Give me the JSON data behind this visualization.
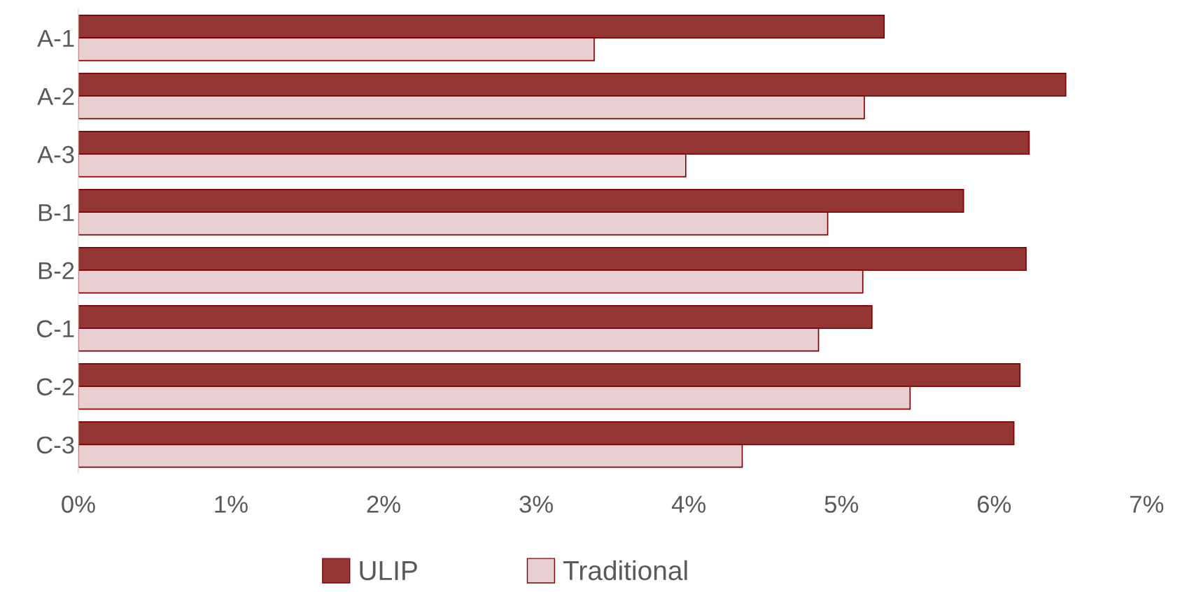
{
  "chart_data": {
    "type": "bar",
    "orientation": "horizontal",
    "categories": [
      "A-1",
      "A-2",
      "A-3",
      "B-1",
      "B-2",
      "C-1",
      "C-2",
      "C-3"
    ],
    "series": [
      {
        "name": "ULIP",
        "color": "#943634",
        "values": [
          5.28,
          6.47,
          6.23,
          5.8,
          6.21,
          5.2,
          6.17,
          6.13
        ]
      },
      {
        "name": "Traditional",
        "color": "#e8cfd1",
        "values": [
          3.38,
          5.15,
          3.98,
          4.91,
          5.14,
          4.85,
          5.45,
          4.35
        ]
      }
    ],
    "xlim": [
      0,
      7
    ],
    "xticks": [
      {
        "value": 0,
        "label": "0%"
      },
      {
        "value": 1,
        "label": "1%"
      },
      {
        "value": 2,
        "label": "2%"
      },
      {
        "value": 3,
        "label": "3%"
      },
      {
        "value": 4,
        "label": "4%"
      },
      {
        "value": 5,
        "label": "5%"
      },
      {
        "value": 6,
        "label": "6%"
      },
      {
        "value": 7,
        "label": "7%"
      }
    ],
    "grid": false,
    "legend": "bottom"
  }
}
